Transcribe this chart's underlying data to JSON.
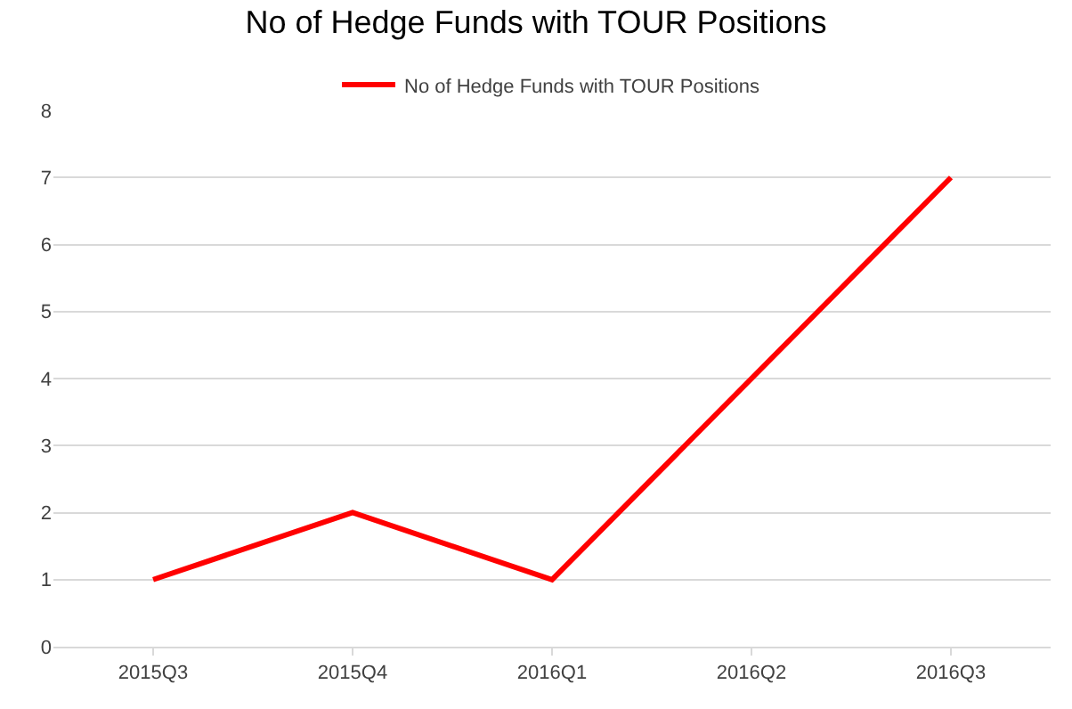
{
  "chart_data": {
    "type": "line",
    "title": "No of Hedge Funds with TOUR Positions",
    "categories": [
      "2015Q3",
      "2015Q4",
      "2016Q1",
      "2016Q2",
      "2016Q3"
    ],
    "series": [
      {
        "name": "No of Hedge Funds with TOUR Positions",
        "color": "#ff0000",
        "values": [
          1,
          2,
          1,
          4,
          7
        ]
      }
    ],
    "ylim": [
      0,
      8
    ],
    "yticks": [
      0,
      1,
      2,
      3,
      4,
      5,
      6,
      7,
      8
    ],
    "grid": "y",
    "legend": "top",
    "marker": "none",
    "line_style": "solid"
  }
}
